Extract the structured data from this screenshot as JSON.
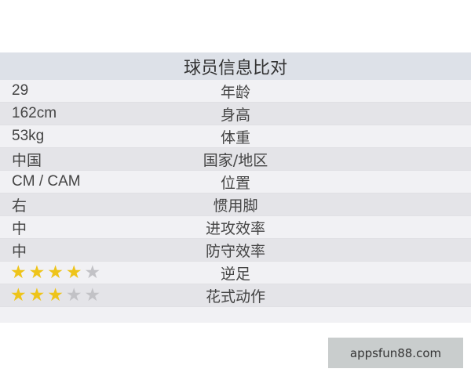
{
  "title": "球员信息比对",
  "rows": [
    {
      "value": "29",
      "label": "年龄"
    },
    {
      "value": "162cm",
      "label": "身高"
    },
    {
      "value": "53kg",
      "label": "体重"
    },
    {
      "value": "中国",
      "label": "国家/地区"
    },
    {
      "value": "CM / CAM",
      "label": "位置"
    },
    {
      "value": "右",
      "label": "惯用脚"
    },
    {
      "value": "中",
      "label": "进攻效率"
    },
    {
      "value": "中",
      "label": "防守效率"
    },
    {
      "rating": 4,
      "max": 5,
      "label": "逆足"
    },
    {
      "rating": 3,
      "max": 5,
      "label": "花式动作"
    }
  ],
  "colors": {
    "star_on": "#eec41a",
    "star_off": "#c2c2c6",
    "header": "#dde1e8"
  },
  "watermark": "appsfun88.com"
}
